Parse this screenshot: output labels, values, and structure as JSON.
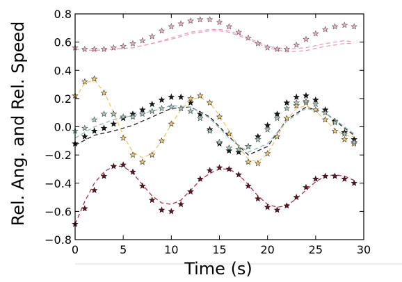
{
  "chart_data": {
    "type": "line",
    "title": "",
    "xlabel": "Time (s)",
    "ylabel": "Rel. Ang. and Rel. Speed",
    "xlim": [
      0,
      30
    ],
    "ylim": [
      -0.8,
      0.8
    ],
    "xticks": [
      0,
      5,
      10,
      15,
      20,
      25,
      30
    ],
    "yticks": [
      -0.8,
      -0.6,
      -0.4,
      -0.2,
      0.0,
      0.2,
      0.4,
      0.6,
      0.8
    ],
    "xtick_labels": [
      "0",
      "5",
      "10",
      "15",
      "20",
      "25",
      "30"
    ],
    "ytick_labels": [
      "−0.8",
      "−0.6",
      "−0.4",
      "−0.2",
      "0.0",
      "0.2",
      "0.4",
      "0.6",
      "0.8"
    ],
    "grid": false,
    "legend": "none",
    "series": [
      {
        "line_color": "#e8a0c0",
        "marker_color": "#f2b0c8",
        "marker_edge": "#555555",
        "line": {
          "x": [
            0,
            2,
            4,
            6,
            8,
            10,
            12,
            14,
            15,
            16,
            18,
            20,
            22,
            24,
            26,
            28,
            29
          ],
          "y": [
            0.55,
            0.54,
            0.55,
            0.56,
            0.59,
            0.63,
            0.67,
            0.69,
            0.69,
            0.68,
            0.63,
            0.57,
            0.55,
            0.56,
            0.59,
            0.61,
            0.6
          ]
        },
        "line2": {
          "x": [
            0,
            2,
            4,
            6,
            8,
            10,
            12,
            14,
            15,
            16,
            18,
            20,
            22,
            24,
            26,
            28,
            29
          ],
          "y": [
            0.55,
            0.54,
            0.55,
            0.56,
            0.59,
            0.62,
            0.66,
            0.68,
            0.68,
            0.67,
            0.62,
            0.56,
            0.53,
            0.54,
            0.57,
            0.59,
            0.59
          ]
        },
        "points": {
          "x": [
            0,
            1,
            2,
            3,
            4,
            5,
            6,
            7,
            8,
            9,
            10,
            11,
            12,
            13,
            14,
            15,
            16,
            17,
            18,
            19,
            20,
            21,
            22,
            23,
            24,
            25,
            26,
            27,
            28,
            29
          ],
          "y": [
            0.56,
            0.55,
            0.55,
            0.55,
            0.56,
            0.57,
            0.59,
            0.61,
            0.64,
            0.68,
            0.71,
            0.73,
            0.75,
            0.76,
            0.76,
            0.74,
            0.71,
            0.67,
            0.63,
            0.59,
            0.56,
            0.55,
            0.55,
            0.58,
            0.62,
            0.66,
            0.69,
            0.71,
            0.72,
            0.71
          ]
        }
      },
      {
        "line_color": "#222222",
        "marker_color": "#1a1a1a",
        "marker_edge": "#000000",
        "line": {
          "x": [
            0,
            2,
            4,
            6,
            8,
            10,
            12,
            14,
            16,
            18,
            20,
            22,
            24,
            26,
            28,
            29
          ],
          "y": [
            -0.13,
            -0.06,
            -0.03,
            0.01,
            0.07,
            0.13,
            0.14,
            0.07,
            -0.07,
            -0.2,
            -0.14,
            0.05,
            0.14,
            0.1,
            -0.01,
            -0.06
          ]
        },
        "points": {
          "x": [
            0,
            1,
            2,
            3,
            4,
            5,
            6,
            7,
            8,
            9,
            10,
            11,
            12,
            13,
            14,
            15,
            16,
            17,
            18,
            19,
            20,
            21,
            22,
            23,
            24,
            25,
            26,
            27,
            28,
            29
          ],
          "y": [
            -0.12,
            -0.07,
            -0.03,
            -0.01,
            0.02,
            0.06,
            0.09,
            0.12,
            0.16,
            0.19,
            0.21,
            0.21,
            0.17,
            0.09,
            -0.02,
            -0.12,
            -0.17,
            -0.18,
            -0.14,
            -0.07,
            0.01,
            0.09,
            0.17,
            0.21,
            0.22,
            0.19,
            0.12,
            0.04,
            -0.04,
            -0.09
          ]
        }
      },
      {
        "line_color": "#f0c860",
        "marker_color": "#f5cf78",
        "marker_edge": "#333333",
        "line": {
          "x": [
            0,
            1,
            2,
            3,
            4,
            5,
            6,
            7,
            8,
            9,
            10,
            11,
            12,
            13,
            14,
            15,
            16,
            17,
            18,
            19,
            20,
            21,
            22,
            23,
            24,
            25,
            26,
            27,
            28,
            29
          ],
          "y": [
            0.2,
            0.31,
            0.33,
            0.25,
            0.1,
            -0.06,
            -0.18,
            -0.22,
            -0.19,
            -0.1,
            0.02,
            0.12,
            0.19,
            0.21,
            0.17,
            0.08,
            -0.03,
            -0.14,
            -0.23,
            -0.25,
            -0.19,
            -0.07,
            0.05,
            0.13,
            0.15,
            0.11,
            0.05,
            -0.02,
            -0.06,
            -0.07
          ]
        },
        "points": {
          "x": [
            0,
            1,
            2,
            3,
            4,
            5,
            6,
            7,
            8,
            9,
            10,
            11,
            12,
            13,
            14,
            15,
            16,
            17,
            18,
            19,
            20,
            21,
            22,
            23,
            24,
            25,
            26,
            27,
            28,
            29
          ],
          "y": [
            0.22,
            0.32,
            0.34,
            0.24,
            0.09,
            -0.08,
            -0.2,
            -0.25,
            -0.2,
            -0.1,
            0.02,
            0.13,
            0.2,
            0.22,
            0.17,
            0.07,
            -0.05,
            -0.16,
            -0.25,
            -0.26,
            -0.19,
            -0.07,
            0.06,
            0.15,
            0.17,
            0.12,
            0.05,
            -0.03,
            -0.09,
            -0.12
          ]
        }
      },
      {
        "line_color": "#8fb8b8",
        "marker_color": "#a8c8c0",
        "marker_edge": "#444444",
        "line": {
          "x": [
            0,
            2,
            4,
            6,
            8,
            10,
            12,
            14,
            16,
            18,
            20,
            22,
            24,
            26,
            28,
            29
          ],
          "y": [
            -0.08,
            0.0,
            0.05,
            0.08,
            0.11,
            0.15,
            0.14,
            0.06,
            -0.08,
            -0.18,
            -0.12,
            0.04,
            0.13,
            0.1,
            0.0,
            -0.05
          ]
        },
        "points": {
          "x": [
            0,
            1,
            2,
            3,
            4,
            5,
            6,
            7,
            8,
            9,
            10,
            11,
            12,
            13,
            14,
            15,
            16,
            17,
            18,
            19,
            20,
            21,
            22,
            23,
            24,
            25,
            26,
            27,
            28,
            29
          ],
          "y": [
            -0.03,
            -0.01,
            0.05,
            0.09,
            0.09,
            0.07,
            0.07,
            0.09,
            0.11,
            0.13,
            0.14,
            0.13,
            0.11,
            0.06,
            -0.03,
            -0.11,
            -0.15,
            -0.16,
            -0.14,
            -0.09,
            -0.02,
            0.06,
            0.13,
            0.17,
            0.18,
            0.16,
            0.1,
            0.03,
            -0.05,
            -0.11
          ]
        }
      },
      {
        "line_color": "#b03048",
        "marker_color": "#5a1828",
        "marker_edge": "#2a0810",
        "line": {
          "x": [
            0,
            1,
            2,
            3,
            4,
            5,
            6,
            7,
            8,
            9,
            10,
            11,
            12,
            13,
            14,
            15,
            16,
            17,
            18,
            19,
            20,
            21,
            22,
            23,
            24,
            25,
            26,
            27,
            28,
            29
          ],
          "y": [
            -0.69,
            -0.53,
            -0.4,
            -0.32,
            -0.28,
            -0.28,
            -0.33,
            -0.41,
            -0.49,
            -0.54,
            -0.55,
            -0.52,
            -0.45,
            -0.38,
            -0.33,
            -0.3,
            -0.3,
            -0.34,
            -0.41,
            -0.49,
            -0.55,
            -0.57,
            -0.56,
            -0.51,
            -0.45,
            -0.39,
            -0.35,
            -0.34,
            -0.35,
            -0.38
          ]
        },
        "points": {
          "x": [
            0,
            1,
            2,
            3,
            4,
            5,
            6,
            7,
            8,
            9,
            10,
            11,
            12,
            13,
            14,
            15,
            16,
            17,
            18,
            19,
            20,
            21,
            22,
            23,
            24,
            25,
            26,
            27,
            28,
            29
          ],
          "y": [
            -0.69,
            -0.58,
            -0.45,
            -0.35,
            -0.28,
            -0.27,
            -0.32,
            -0.42,
            -0.52,
            -0.59,
            -0.6,
            -0.55,
            -0.46,
            -0.37,
            -0.31,
            -0.29,
            -0.3,
            -0.34,
            -0.42,
            -0.51,
            -0.57,
            -0.59,
            -0.56,
            -0.5,
            -0.43,
            -0.37,
            -0.35,
            -0.35,
            -0.37,
            -0.4
          ]
        }
      }
    ]
  }
}
